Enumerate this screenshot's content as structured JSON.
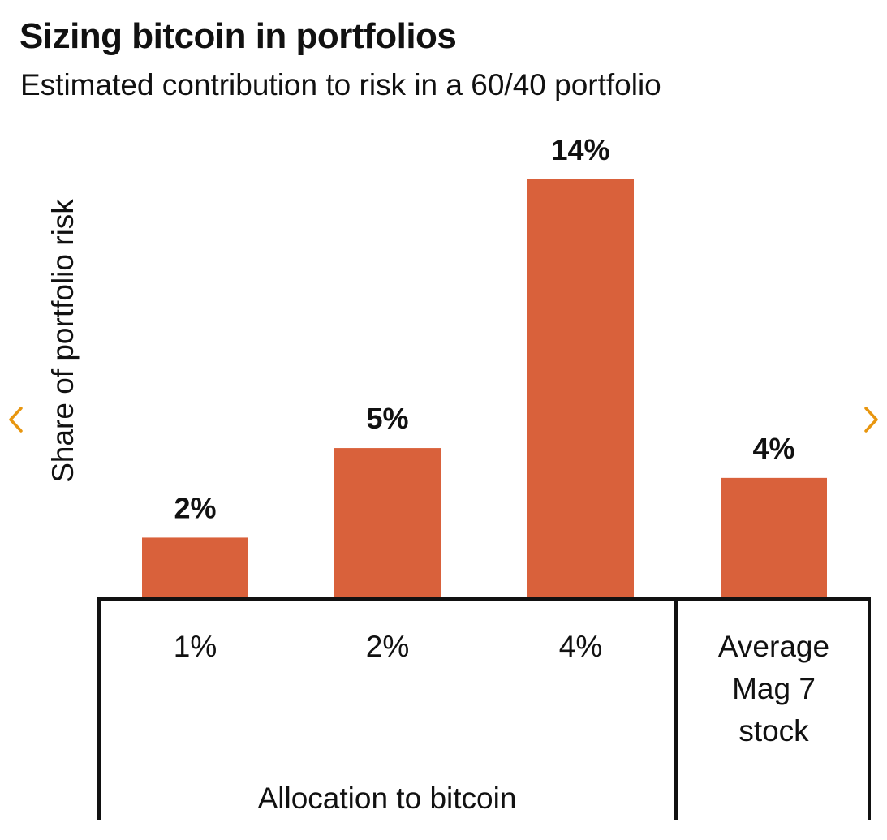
{
  "header": {
    "title": "Sizing bitcoin in portfolios",
    "subtitle": "Estimated contribution to risk in a 60/40 portfolio"
  },
  "navigation": {
    "prev_icon": "chevron-left-icon",
    "next_icon": "chevron-right-icon",
    "arrow_color": "#E8960F"
  },
  "chart_data": {
    "type": "bar",
    "title": "Sizing bitcoin in portfolios",
    "subtitle": "Estimated contribution to risk in a 60/40 portfolio",
    "ylabel": "Share of portfolio risk",
    "xlabel": "Allocation to bitcoin",
    "ylim": [
      0,
      14
    ],
    "grid": false,
    "categories": [
      "1%",
      "2%",
      "4%",
      "Average Mag 7 stock"
    ],
    "values": [
      2,
      5,
      14,
      4
    ],
    "value_labels": [
      "2%",
      "5%",
      "14%",
      "4%"
    ],
    "bar_color": "#D9613B",
    "groups": [
      {
        "label": "Allocation to bitcoin",
        "categories": [
          "1%",
          "2%",
          "4%"
        ]
      },
      {
        "label": "",
        "categories": [
          "Average Mag 7 stock"
        ]
      }
    ]
  }
}
